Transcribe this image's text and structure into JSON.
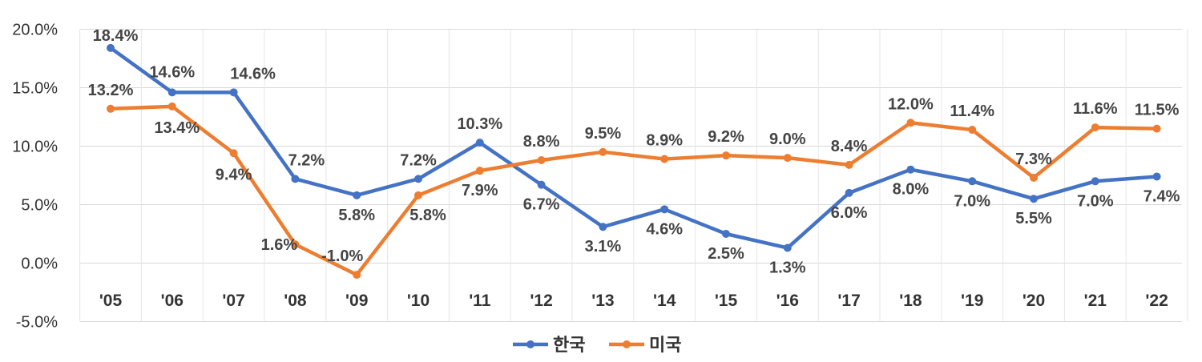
{
  "chart_data": {
    "type": "line",
    "categories": [
      "'05",
      "'06",
      "'07",
      "'08",
      "'09",
      "'10",
      "'11",
      "'12",
      "'13",
      "'14",
      "'15",
      "'16",
      "'17",
      "'18",
      "'19",
      "'20",
      "'21",
      "'22"
    ],
    "series": [
      {
        "name": "한국",
        "color": "#4472C4",
        "values": [
          18.4,
          14.6,
          14.6,
          7.2,
          5.8,
          7.2,
          10.3,
          6.7,
          3.1,
          4.6,
          2.5,
          1.3,
          6.0,
          8.0,
          7.0,
          5.5,
          7.0,
          7.4
        ],
        "labels": [
          "18.4%",
          "14.6%",
          "14.6%",
          "7.2%",
          "5.8%",
          "7.2%",
          "10.3%",
          "6.7%",
          "3.1%",
          "4.6%",
          "2.5%",
          "1.3%",
          "6.0%",
          "8.0%",
          "7.0%",
          "5.5%",
          "7.0%",
          "7.4%"
        ]
      },
      {
        "name": "미국",
        "color": "#ED7D31",
        "values": [
          13.2,
          13.4,
          9.4,
          1.6,
          -1.0,
          5.8,
          7.9,
          8.8,
          9.5,
          8.9,
          9.2,
          9.0,
          8.4,
          12.0,
          11.4,
          7.3,
          11.6,
          11.5
        ],
        "labels": [
          "13.2%",
          "13.4%",
          "9.4%",
          "1.6%",
          "-1.0%",
          "5.8%",
          "7.9%",
          "8.8%",
          "9.5%",
          "8.9%",
          "9.2%",
          "9.0%",
          "8.4%",
          "12.0%",
          "11.4%",
          "7.3%",
          "11.6%",
          "11.5%"
        ]
      }
    ],
    "ytick_labels": [
      "20.0%",
      "15.0%",
      "10.0%",
      "5.0%",
      "0.0%",
      "-5.0%"
    ],
    "yticks": [
      20,
      15,
      10,
      5,
      0,
      -5
    ],
    "ylim": [
      -5,
      20
    ],
    "grid": true,
    "legend_position": "bottom"
  }
}
